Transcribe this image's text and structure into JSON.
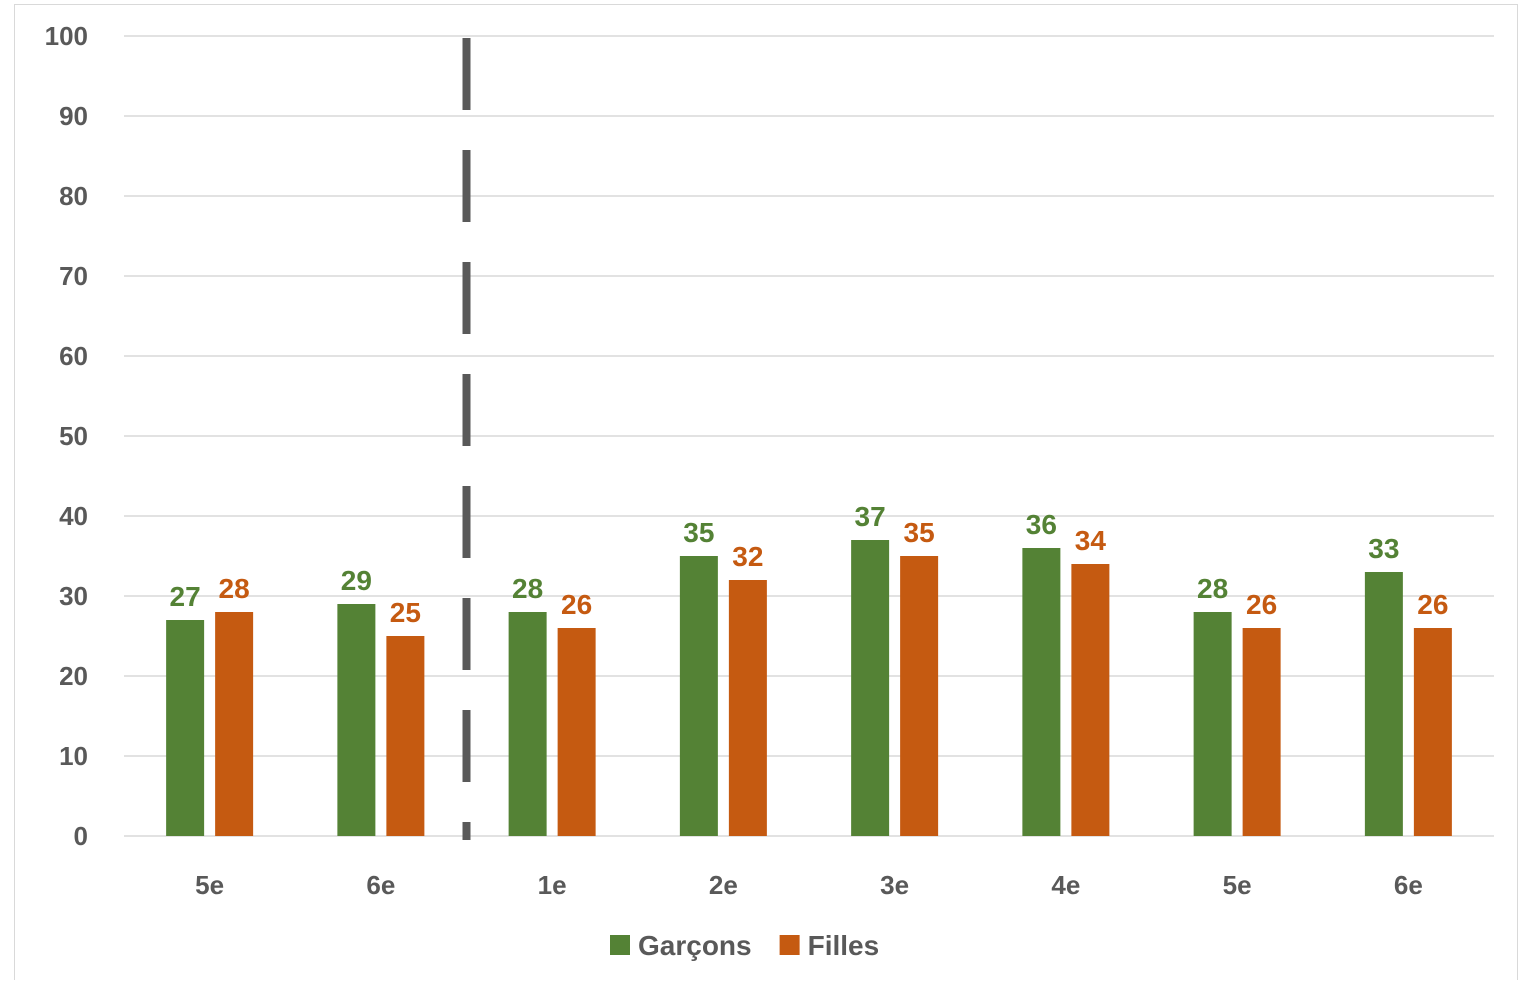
{
  "chart_data": {
    "type": "bar",
    "categories": [
      "5e",
      "6e",
      "1e",
      "2e",
      "3e",
      "4e",
      "5e",
      "6e"
    ],
    "series": [
      {
        "name": "Garçons",
        "color": "#548235",
        "values": [
          27,
          29,
          28,
          35,
          37,
          36,
          28,
          33
        ]
      },
      {
        "name": "Filles",
        "color": "#c55a11",
        "values": [
          28,
          25,
          26,
          32,
          35,
          34,
          26,
          26
        ]
      }
    ],
    "ylim": [
      0,
      100
    ],
    "yticks": [
      "0",
      "10",
      "20",
      "30",
      "40",
      "50",
      "60",
      "70",
      "80",
      "90",
      "100"
    ],
    "grid": true,
    "legend_position": "bottom",
    "divider_after_category_index": 1,
    "colors": {
      "grid": "#d9d9d9",
      "tick_text": "#595959",
      "divider": "#595959"
    }
  }
}
